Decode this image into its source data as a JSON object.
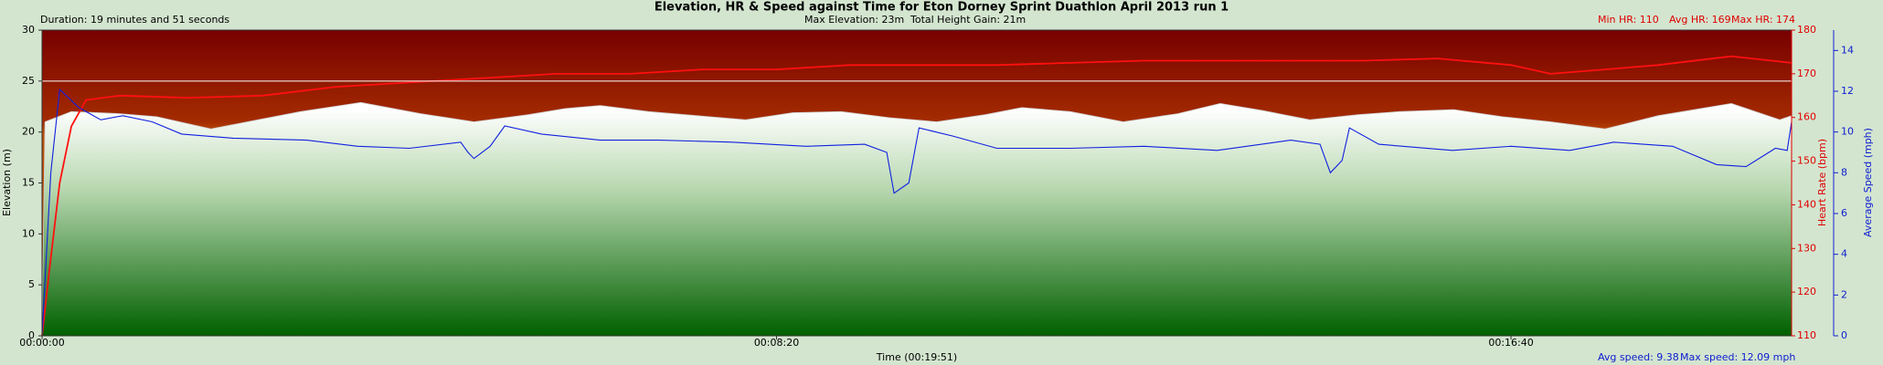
{
  "chart_data": {
    "type": "multi-axis-line",
    "title": "Elevation, HR & Speed against Time for Eton Dorney Sprint Duathlon April 2013 run 1",
    "stats_left": "Duration: 19 minutes and 51 seconds",
    "stats_center": [
      "Max Elevation: 23m",
      "Total Height Gain: 21m"
    ],
    "stats_right": [
      "Min HR: 110",
      "Avg HR: 169",
      "Max HR: 174"
    ],
    "stats_speed": [
      "Avg speed: 9.38",
      "Max speed: 12.09 mph"
    ],
    "xlabel": "Time (00:19:51)",
    "ylabel": "Elevation (m)",
    "y2label": "Heart Rate (bpm)",
    "y3label": "Average Speed (mph)",
    "xlim": [
      0,
      1191
    ],
    "xticks": [
      {
        "value": 0,
        "label": "00:00:00"
      },
      {
        "value": 500,
        "label": "00:08:20"
      },
      {
        "value": 1000,
        "label": "00:16:40"
      }
    ],
    "ylim": [
      0,
      30
    ],
    "yticks": [
      0,
      5,
      10,
      15,
      20,
      25,
      30
    ],
    "y2lim": [
      110,
      180
    ],
    "y2ticks": [
      110,
      120,
      130,
      140,
      150,
      160,
      170,
      180
    ],
    "y3lim": [
      0,
      15
    ],
    "y3ticks": [
      0,
      2,
      4,
      6,
      8,
      10,
      12,
      14
    ],
    "reference_line": 25,
    "series": [
      {
        "kind": "area",
        "axis": "y",
        "color": "#ffffff",
        "x": [
          0,
          2,
          20,
          53,
          78,
          115,
          147,
          176,
          217,
          258,
          294,
          331,
          356,
          380,
          413,
          446,
          479,
          511,
          544,
          577,
          609,
          642,
          667,
          700,
          736,
          773,
          802,
          831,
          863,
          896,
          924,
          961,
          994,
          1027,
          1064,
          1100,
          1150,
          1183,
          1191
        ],
        "values": [
          0,
          21,
          22,
          21.8,
          21.5,
          20.3,
          21.2,
          22,
          22.9,
          21.8,
          21,
          21.7,
          22.3,
          22.6,
          22,
          21.6,
          21.2,
          21.9,
          22,
          21.4,
          21,
          21.7,
          22.4,
          22,
          21,
          21.8,
          22.8,
          22.1,
          21.2,
          21.7,
          22,
          22.2,
          21.5,
          21,
          20.3,
          21.6,
          22.8,
          21.2,
          21.6
        ]
      },
      {
        "kind": "line",
        "axis": "y2",
        "color": "#ff1010",
        "x": [
          0,
          5,
          12,
          20,
          30,
          53,
          100,
          150,
          200,
          250,
          300,
          350,
          400,
          450,
          500,
          550,
          600,
          650,
          700,
          750,
          800,
          850,
          900,
          950,
          1000,
          1027,
          1064,
          1100,
          1150,
          1191
        ],
        "values": [
          110,
          125,
          145,
          158,
          164,
          165,
          164.5,
          165,
          167,
          168,
          169,
          170,
          170,
          171,
          171,
          172,
          172,
          172,
          172.5,
          173,
          173,
          173,
          173,
          173.5,
          172,
          170,
          171,
          172,
          174,
          172.5
        ]
      },
      {
        "kind": "line",
        "axis": "y3",
        "color": "#1020e0",
        "x": [
          0,
          6,
          12,
          25,
          40,
          55,
          75,
          95,
          130,
          180,
          215,
          250,
          285,
          290,
          294,
          305,
          315,
          340,
          380,
          420,
          470,
          520,
          560,
          575,
          580,
          590,
          597,
          620,
          650,
          700,
          750,
          800,
          850,
          870,
          877,
          885,
          890,
          910,
          960,
          1000,
          1040,
          1070,
          1110,
          1140,
          1160,
          1180,
          1188,
          1191
        ],
        "values": [
          0,
          8,
          12.09,
          11.2,
          10.6,
          10.8,
          10.5,
          9.9,
          9.7,
          9.6,
          9.3,
          9.2,
          9.5,
          9,
          8.7,
          9.3,
          10.3,
          9.9,
          9.6,
          9.6,
          9.5,
          9.3,
          9.4,
          9,
          7,
          7.5,
          10.2,
          9.8,
          9.2,
          9.2,
          9.3,
          9.1,
          9.6,
          9.4,
          8,
          8.6,
          10.2,
          9.4,
          9.1,
          9.3,
          9.1,
          9.5,
          9.3,
          8.4,
          8.3,
          9.2,
          9.1,
          10.5
        ]
      }
    ]
  }
}
